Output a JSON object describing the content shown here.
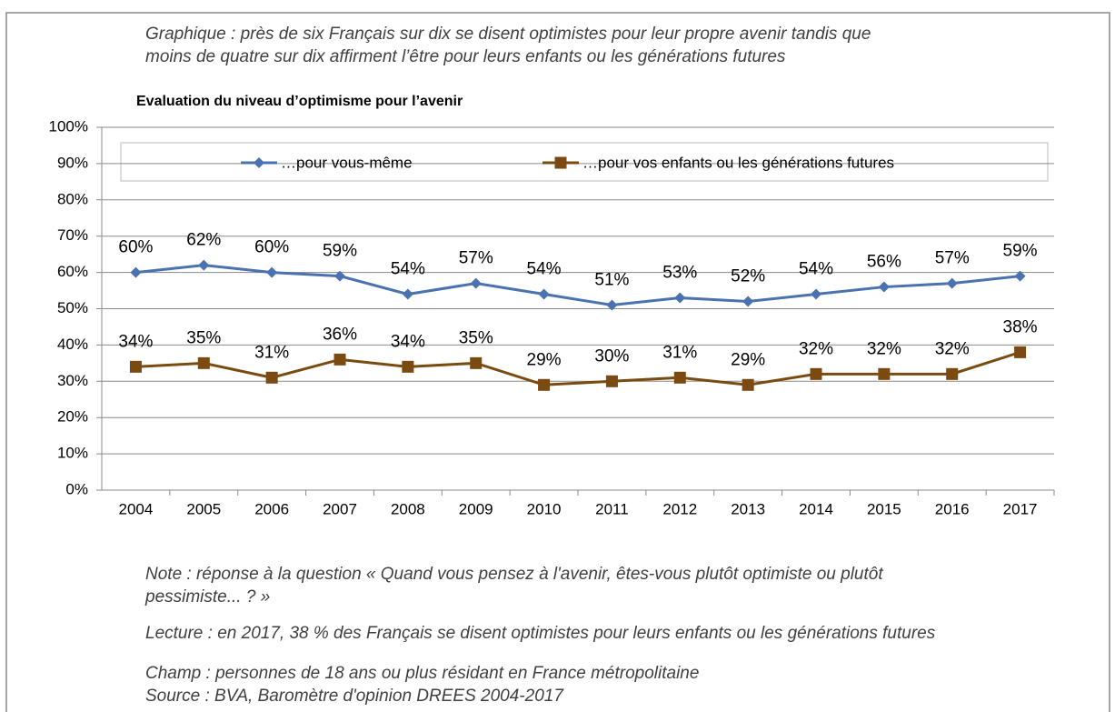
{
  "caption": [
    "Graphique : près de six Français sur dix se disent optimistes pour leur propre avenir tandis que",
    "moins de quatre sur dix affirment l’être pour leurs enfants ou les générations futures"
  ],
  "chart_data": {
    "type": "line",
    "title": "Evaluation du niveau d’optimisme  pour l’avenir",
    "categories": [
      "2004",
      "2005",
      "2006",
      "2007",
      "2008",
      "2009",
      "2010",
      "2011",
      "2012",
      "2013",
      "2014",
      "2015",
      "2016",
      "2017"
    ],
    "series": [
      {
        "name": "…pour vous-même",
        "color": "#4a72b0",
        "marker": "diamond",
        "values": [
          60,
          62,
          60,
          59,
          54,
          57,
          54,
          51,
          53,
          52,
          54,
          56,
          57,
          59
        ],
        "value_labels": [
          "60%",
          "62%",
          "60%",
          "59%",
          "54%",
          "57%",
          "54%",
          "51%",
          "53%",
          "52%",
          "54%",
          "56%",
          "57%",
          "59%"
        ]
      },
      {
        "name": "…pour vos enfants ou les générations  futures",
        "color": "#7b4a10",
        "marker": "square",
        "values": [
          34,
          35,
          31,
          36,
          34,
          35,
          29,
          30,
          31,
          29,
          32,
          32,
          32,
          38
        ],
        "value_labels": [
          "34%",
          "35%",
          "31%",
          "36%",
          "34%",
          "35%",
          "29%",
          "30%",
          "31%",
          "29%",
          "32%",
          "32%",
          "32%",
          "38%"
        ]
      }
    ],
    "ylim": [
      0,
      100
    ],
    "yticks": [
      {
        "value": 0,
        "label": "0%"
      },
      {
        "value": 10,
        "label": "10%"
      },
      {
        "value": 20,
        "label": "20%"
      },
      {
        "value": 30,
        "label": "30%"
      },
      {
        "value": 40,
        "label": "40%"
      },
      {
        "value": 50,
        "label": "50%"
      },
      {
        "value": 60,
        "label": "60%"
      },
      {
        "value": 70,
        "label": "70%"
      },
      {
        "value": 80,
        "label": "80%"
      },
      {
        "value": 90,
        "label": "90%"
      },
      {
        "value": 100,
        "label": "100%"
      }
    ],
    "grid": true,
    "legend": "top"
  },
  "notes": {
    "note": [
      "Note : réponse à la question « Quand vous pensez à l'avenir, êtes-vous plutôt optimiste ou plutôt",
      "pessimiste... ? »"
    ],
    "lecture": "Lecture : en 2017, 38 % des Français se disent optimistes pour leurs enfants ou les générations futures",
    "champ": "Champ : personnes de 18 ans ou plus résidant en France métropolitaine",
    "source": "Source : BVA, Baromètre d'opinion DREES 2004-2017"
  }
}
